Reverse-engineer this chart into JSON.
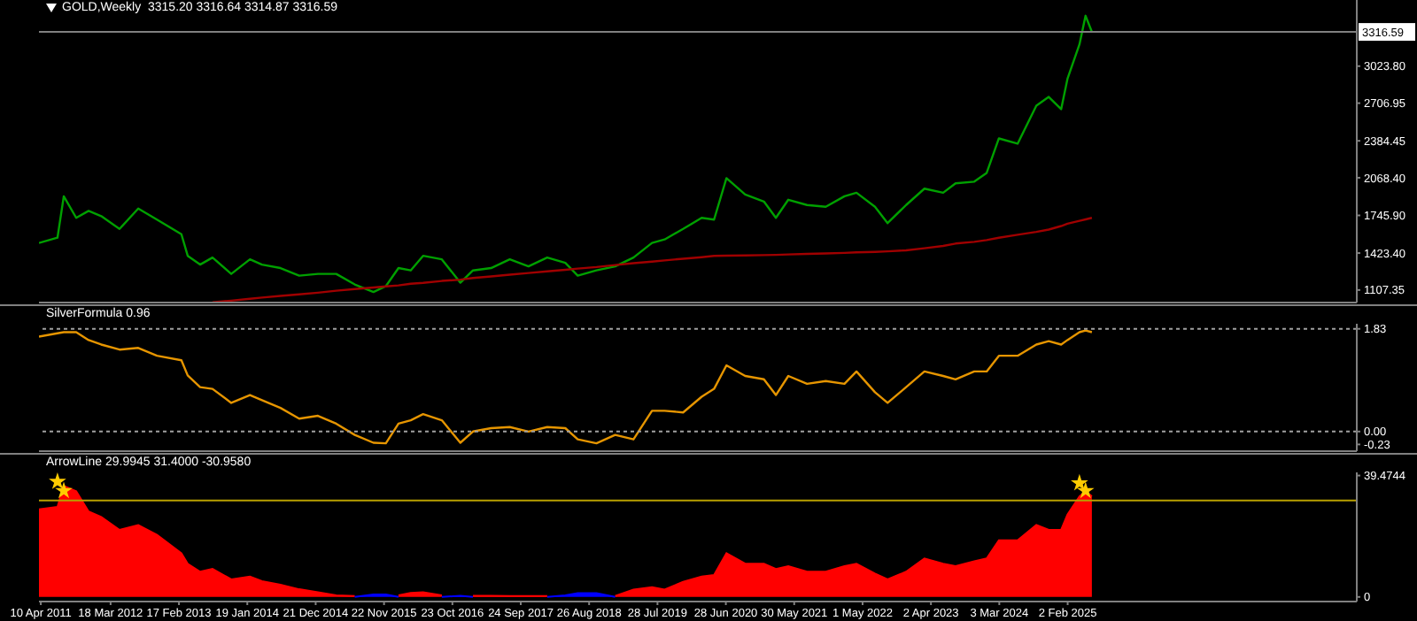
{
  "chart_data": [
    {
      "type": "line",
      "title": "GOLD,Weekly  3315.20 3316.64 3314.87 3316.59",
      "tick_labels": "y",
      "xlim": [
        "2011-04-01",
        "2028-12-24"
      ],
      "ylim": [
        1000,
        3590
      ],
      "yticks": [
        {
          "value": 1107.35,
          "label": "1107.35"
        },
        {
          "value": 1423.4,
          "label": "1423.40"
        },
        {
          "value": 1745.9,
          "label": "1745.90"
        },
        {
          "value": 2068.4,
          "label": "2068.40"
        },
        {
          "value": 2384.45,
          "label": "2384.45"
        },
        {
          "value": 2706.95,
          "label": "2706.95"
        },
        {
          "value": 3023.8,
          "label": "3023.80"
        }
      ],
      "x": [
        "2011-04",
        "2011-07",
        "2011-08",
        "2011-10",
        "2011-12",
        "2012-02",
        "2012-05",
        "2012-08",
        "2012-11",
        "2013-03",
        "2013-04",
        "2013-06",
        "2013-08",
        "2013-11",
        "2014-02",
        "2014-04",
        "2014-07",
        "2014-10",
        "2015-01",
        "2015-04",
        "2015-07",
        "2015-10",
        "2015-12",
        "2016-02",
        "2016-04",
        "2016-06",
        "2016-09",
        "2016-12",
        "2017-02",
        "2017-05",
        "2017-08",
        "2017-11",
        "2018-02",
        "2018-05",
        "2018-07",
        "2018-10",
        "2019-01",
        "2019-04",
        "2019-07",
        "2019-09",
        "2019-12",
        "2020-03",
        "2020-05",
        "2020-07",
        "2020-10",
        "2021-01",
        "2021-03",
        "2021-05",
        "2021-08",
        "2021-11",
        "2022-02",
        "2022-04",
        "2022-07",
        "2022-09",
        "2022-12",
        "2023-03",
        "2023-06",
        "2023-08",
        "2023-11",
        "2024-01",
        "2024-03",
        "2024-06",
        "2024-09",
        "2024-11",
        "2025-01",
        "2025-02",
        "2025-04",
        "2025-05",
        "2025-06"
      ],
      "series": [
        {
          "color": "#00a000",
          "values": [
            1510,
            1555,
            1910,
            1725,
            1785,
            1740,
            1630,
            1805,
            1710,
            1585,
            1400,
            1325,
            1385,
            1245,
            1370,
            1325,
            1295,
            1230,
            1245,
            1245,
            1155,
            1090,
            1140,
            1295,
            1275,
            1400,
            1370,
            1170,
            1275,
            1295,
            1370,
            1310,
            1385,
            1340,
            1230,
            1275,
            1310,
            1385,
            1510,
            1540,
            1630,
            1725,
            1710,
            2065,
            1925,
            1865,
            1725,
            1880,
            1835,
            1820,
            1910,
            1940,
            1820,
            1680,
            1835,
            1975,
            1940,
            2020,
            2035,
            2110,
            2405,
            2360,
            2685,
            2760,
            2655,
            2915,
            3210,
            3455,
            3317
          ]
        },
        {
          "color": "#a00000",
          "values": [
            null,
            null,
            null,
            null,
            null,
            null,
            null,
            null,
            null,
            null,
            null,
            null,
            1003,
            1016,
            1032,
            1043,
            1057,
            1070,
            1084,
            1101,
            1115,
            1129,
            1138,
            1147,
            1161,
            1169,
            1185,
            1196,
            1210,
            1223,
            1239,
            1253,
            1267,
            1280,
            1291,
            1304,
            1321,
            1337,
            1350,
            1361,
            1375,
            1388,
            1399,
            1401,
            1403,
            1406,
            1408,
            1412,
            1416,
            1420,
            1425,
            1430,
            1434,
            1438,
            1447,
            1465,
            1485,
            1505,
            1520,
            1535,
            1555,
            1580,
            1605,
            1625,
            1655,
            1675,
            1700,
            1712,
            1725
          ]
        }
      ],
      "ref_lines": [
        {
          "axis": "y",
          "value": 3316.59,
          "label": "3316.59",
          "color": "#808080"
        }
      ]
    },
    {
      "type": "line",
      "title": "SilverFormula 0.96",
      "tick_labels": "y",
      "xlim": [
        "2011-04-01",
        "2028-12-24"
      ],
      "ylim": [
        -0.35,
        1.92
      ],
      "yticks": [
        {
          "value": -0.23,
          "label": "-0.23"
        },
        {
          "value": 0,
          "label": "0.00"
        },
        {
          "value": 1.83,
          "label": "1.83"
        }
      ],
      "x": [
        "2011-04",
        "2011-07",
        "2011-08",
        "2011-10",
        "2011-12",
        "2012-02",
        "2012-05",
        "2012-08",
        "2012-11",
        "2013-03",
        "2013-04",
        "2013-06",
        "2013-08",
        "2013-11",
        "2014-02",
        "2014-04",
        "2014-07",
        "2014-10",
        "2015-01",
        "2015-04",
        "2015-07",
        "2015-10",
        "2015-12",
        "2016-02",
        "2016-04",
        "2016-06",
        "2016-09",
        "2016-12",
        "2017-02",
        "2017-05",
        "2017-08",
        "2017-11",
        "2018-02",
        "2018-05",
        "2018-07",
        "2018-10",
        "2019-01",
        "2019-04",
        "2019-07",
        "2019-09",
        "2019-12",
        "2020-03",
        "2020-05",
        "2020-07",
        "2020-10",
        "2021-01",
        "2021-03",
        "2021-05",
        "2021-08",
        "2021-11",
        "2022-02",
        "2022-04",
        "2022-07",
        "2022-09",
        "2022-12",
        "2023-03",
        "2023-06",
        "2023-08",
        "2023-11",
        "2024-01",
        "2024-03",
        "2024-06",
        "2024-09",
        "2024-11",
        "2025-01",
        "2025-02",
        "2025-04",
        "2025-05",
        "2025-06"
      ],
      "series": [
        {
          "color": "#e69500",
          "values": [
            1.69,
            1.75,
            1.77,
            1.77,
            1.63,
            1.55,
            1.46,
            1.49,
            1.35,
            1.27,
            1.0,
            0.79,
            0.76,
            0.51,
            0.65,
            0.56,
            0.42,
            0.23,
            0.28,
            0.14,
            -0.06,
            -0.2,
            -0.21,
            0.14,
            0.2,
            0.31,
            0.2,
            -0.2,
            0.0,
            0.06,
            0.08,
            0.0,
            0.08,
            0.06,
            -0.14,
            -0.21,
            -0.06,
            -0.14,
            0.37,
            0.37,
            0.34,
            0.62,
            0.76,
            1.18,
            0.99,
            0.93,
            0.65,
            0.99,
            0.85,
            0.9,
            0.85,
            1.07,
            0.7,
            0.51,
            0.79,
            1.07,
            0.99,
            0.93,
            1.07,
            1.07,
            1.35,
            1.35,
            1.55,
            1.61,
            1.55,
            1.63,
            1.77,
            1.8,
            1.77
          ]
        }
      ],
      "ref_lines": [
        {
          "axis": "y",
          "value": 1.83,
          "color": "#a0a0a0",
          "line_style": "dotted"
        },
        {
          "axis": "y",
          "value": 0,
          "color": "#a0a0a0",
          "line_style": "dotted"
        }
      ]
    },
    {
      "type": "area",
      "title": "ArrowLine 29.9945 31.4000 -30.9580",
      "xlim": [
        "2011-04-01",
        "2028-12-24"
      ],
      "ylim": [
        -1.5,
        40.5
      ],
      "yticks": [
        0,
        {
          "value": 39.4744,
          "label": "39.4744"
        }
      ],
      "xticks": [
        {
          "value": "2011-04-10",
          "label": "10 Apr 2011"
        },
        {
          "value": "2012-03-18",
          "label": "18 Mar 2012"
        },
        {
          "value": "2013-02-17",
          "label": "17 Feb 2013"
        },
        {
          "value": "2014-01-19",
          "label": "19 Jan 2014"
        },
        {
          "value": "2014-12-21",
          "label": "21 Dec 2014"
        },
        {
          "value": "2015-11-22",
          "label": "22 Nov 2015"
        },
        {
          "value": "2016-10-23",
          "label": "23 Oct 2016"
        },
        {
          "value": "2017-09-24",
          "label": "24 Sep 2017"
        },
        {
          "value": "2018-08-26",
          "label": "26 Aug 2018"
        },
        {
          "value": "2019-07-28",
          "label": "28 Jul 2019"
        },
        {
          "value": "2020-06-28",
          "label": "28 Jun 2020"
        },
        {
          "value": "2021-05-30",
          "label": "30 May 2021"
        },
        {
          "value": "2022-05-01",
          "label": "1 May 2022"
        },
        {
          "value": "2023-04-02",
          "label": "2 Apr 2023"
        },
        {
          "value": "2024-03-03",
          "label": "3 Mar 2024"
        },
        {
          "value": "2025-02-02",
          "label": "2 Feb 2025"
        }
      ],
      "x": [
        "2011-04",
        "2011-07",
        "2011-08",
        "2011-10",
        "2011-12",
        "2012-02",
        "2012-05",
        "2012-08",
        "2012-11",
        "2013-03",
        "2013-04",
        "2013-06",
        "2013-08",
        "2013-11",
        "2014-02",
        "2014-04",
        "2014-07",
        "2014-10",
        "2015-01",
        "2015-04",
        "2015-07",
        "2015-10",
        "2015-12",
        "2016-02",
        "2016-04",
        "2016-06",
        "2016-09",
        "2016-12",
        "2017-02",
        "2017-05",
        "2017-08",
        "2017-11",
        "2018-02",
        "2018-05",
        "2018-07",
        "2018-10",
        "2019-01",
        "2019-04",
        "2019-07",
        "2019-09",
        "2019-12",
        "2020-03",
        "2020-05",
        "2020-07",
        "2020-10",
        "2021-01",
        "2021-03",
        "2021-05",
        "2021-08",
        "2021-11",
        "2022-02",
        "2022-04",
        "2022-07",
        "2022-09",
        "2022-12",
        "2023-03",
        "2023-06",
        "2023-08",
        "2023-11",
        "2024-01",
        "2024-03",
        "2024-06",
        "2024-09",
        "2024-11",
        "2025-01",
        "2025-02",
        "2025-04",
        "2025-05",
        "2025-06"
      ],
      "series": [
        {
          "color": "#ff0000",
          "values": [
            28.5,
            29.3,
            36.1,
            34.4,
            27.8,
            26,
            21.8,
            23.4,
            20.2,
            14.2,
            10.8,
            8.2,
            9.1,
            5.7,
            6.6,
            5.1,
            4.0,
            2.5,
            1.5,
            0.5,
            0.3,
            null,
            null,
            0.5,
            1.3,
            1.5,
            0.5,
            null,
            0.4,
            0.4,
            0.3,
            0.3,
            0.3,
            null,
            null,
            null,
            0.3,
            2.4,
            3.2,
            2.4,
            4.9,
            6.6,
            7.1,
            14.2,
            10.8,
            10.8,
            9.1,
            10,
            8.2,
            8.2,
            10,
            10.8,
            7.6,
            5.7,
            8.2,
            12.5,
            10.8,
            10,
            11.6,
            12.5,
            18.4,
            18.4,
            23.4,
            21.8,
            21.8,
            26.8,
            32.7,
            34.4,
            32.7
          ]
        },
        {
          "color": "#0000ff",
          "values": [
            null,
            null,
            null,
            null,
            null,
            null,
            null,
            null,
            null,
            null,
            null,
            null,
            null,
            null,
            null,
            null,
            null,
            null,
            null,
            null,
            0,
            0.8,
            0.8,
            0,
            null,
            null,
            0,
            0.4,
            0,
            null,
            null,
            null,
            0,
            0.5,
            1.2,
            1.2,
            0,
            null,
            null,
            null,
            null,
            null,
            null,
            null,
            null,
            null,
            null,
            null,
            null,
            null,
            null,
            null,
            null,
            null,
            null,
            null,
            null,
            null,
            null,
            null,
            null,
            null,
            null,
            null,
            null,
            null,
            null,
            null,
            null
          ]
        },
        {
          "type": "scatter",
          "color": "#ffcc00",
          "marker": "star",
          "x": [
            "2011-07",
            "2011-08",
            "2025-04",
            "2025-05"
          ],
          "values": [
            37.5,
            34.5,
            37,
            34.5
          ]
        }
      ],
      "ref_lines": [
        {
          "axis": "y",
          "value": 31.4,
          "color": "#b8a000"
        }
      ]
    }
  ]
}
